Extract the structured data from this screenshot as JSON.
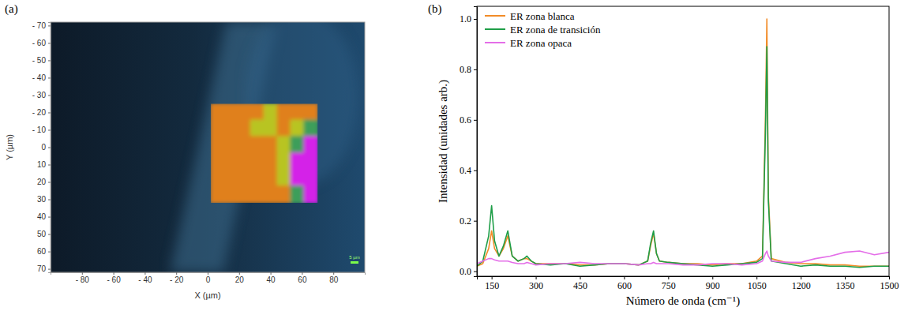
{
  "chart_data": [
    {
      "type": "image_map",
      "panel": "(a)",
      "x_label": "X (µm)",
      "y_label": "Y (µm)",
      "xlim": [
        -100,
        100
      ],
      "ylim": [
        72,
        -72
      ],
      "xticks": [
        {
          "value": -80,
          "label": "- 80"
        },
        {
          "value": -60,
          "label": "- 60"
        },
        {
          "value": -40,
          "label": "- 40"
        },
        {
          "value": -20,
          "label": "- 20"
        },
        0,
        20,
        40,
        60,
        80
      ],
      "yticks": [
        {
          "value": -70,
          "label": "- 70"
        },
        {
          "value": -60,
          "label": "- 60"
        },
        {
          "value": -50,
          "label": "- 50"
        },
        {
          "value": -40,
          "label": "- 40"
        },
        {
          "value": -30,
          "label": "- 30"
        },
        {
          "value": -20,
          "label": "- 20"
        },
        {
          "value": -10,
          "label": "- 10"
        },
        0,
        10,
        20,
        30,
        40,
        50,
        60,
        70
      ],
      "map": {
        "x": [
          2,
          70
        ],
        "y": [
          -25,
          32
        ],
        "cells": [
          [
            0,
            0,
            0,
            0,
            1,
            0,
            0,
            0
          ],
          [
            0,
            0,
            0,
            1,
            1,
            0,
            1,
            2
          ],
          [
            0,
            0,
            0,
            0,
            0,
            1,
            2,
            3
          ],
          [
            0,
            0,
            0,
            0,
            0,
            1,
            3,
            3
          ],
          [
            0,
            0,
            0,
            0,
            0,
            1,
            3,
            3
          ],
          [
            0,
            0,
            0,
            0,
            0,
            0,
            2,
            3
          ]
        ],
        "colors": [
          "#e0801a",
          "#b8c424",
          "#3c9e5a",
          "#d424e8"
        ]
      },
      "annotations": [
        "5 µm"
      ]
    },
    {
      "type": "line",
      "panel": "(b)",
      "x_label": "Número de onda (cm⁻¹)",
      "y_label": "Intensidad (unidades arb.)",
      "legend": "upper left",
      "xlim": [
        100,
        1500
      ],
      "ylim": [
        -0.02,
        1.05
      ],
      "xticks": [
        150,
        300,
        450,
        600,
        750,
        900,
        1050,
        1200,
        1350,
        1500
      ],
      "yticks": [
        {
          "value": 0,
          "label": "0.0"
        },
        {
          "value": 0.2,
          "label": "0.2"
        },
        {
          "value": 0.4,
          "label": "0.4"
        },
        {
          "value": 0.6,
          "label": "0.6"
        },
        {
          "value": 0.8,
          "label": "0.8"
        },
        {
          "value": 1.0,
          "label": "1.0"
        }
      ],
      "x": [
        100,
        120,
        140,
        150,
        160,
        175,
        190,
        205,
        220,
        240,
        260,
        270,
        285,
        300,
        350,
        400,
        450,
        500,
        550,
        600,
        650,
        680,
        690,
        700,
        710,
        720,
        750,
        800,
        850,
        900,
        950,
        1000,
        1050,
        1070,
        1080,
        1085,
        1090,
        1100,
        1150,
        1200,
        1250,
        1300,
        1350,
        1400,
        1450,
        1500
      ],
      "series": [
        {
          "name": "ER zona blanca",
          "color": "#f28c28",
          "values": [
            0.02,
            0.03,
            0.09,
            0.16,
            0.09,
            0.06,
            0.09,
            0.14,
            0.06,
            0.04,
            0.05,
            0.05,
            0.04,
            0.03,
            0.03,
            0.03,
            0.025,
            0.025,
            0.03,
            0.03,
            0.025,
            0.04,
            0.1,
            0.15,
            0.07,
            0.04,
            0.035,
            0.03,
            0.03,
            0.025,
            0.03,
            0.03,
            0.04,
            0.06,
            0.6,
            1.0,
            0.3,
            0.05,
            0.035,
            0.03,
            0.03,
            0.025,
            0.025,
            0.02,
            0.02,
            0.02
          ]
        },
        {
          "name": "ER zona de transición",
          "color": "#1f9e48",
          "values": [
            0.02,
            0.04,
            0.14,
            0.26,
            0.12,
            0.06,
            0.1,
            0.16,
            0.06,
            0.04,
            0.05,
            0.06,
            0.04,
            0.03,
            0.025,
            0.03,
            0.02,
            0.025,
            0.03,
            0.03,
            0.025,
            0.04,
            0.11,
            0.16,
            0.07,
            0.04,
            0.035,
            0.03,
            0.025,
            0.02,
            0.025,
            0.03,
            0.035,
            0.05,
            0.55,
            0.89,
            0.28,
            0.04,
            0.03,
            0.02,
            0.025,
            0.02,
            0.02,
            0.015,
            0.02,
            0.02
          ]
        },
        {
          "name": "ER zona opaca",
          "color": "#e46ee8",
          "values": [
            0.03,
            0.04,
            0.05,
            0.05,
            0.045,
            0.04,
            0.04,
            0.04,
            0.035,
            0.03,
            0.03,
            0.035,
            0.03,
            0.025,
            0.03,
            0.03,
            0.035,
            0.03,
            0.03,
            0.03,
            0.025,
            0.03,
            0.03,
            0.035,
            0.03,
            0.03,
            0.03,
            0.025,
            0.025,
            0.03,
            0.03,
            0.025,
            0.03,
            0.04,
            0.07,
            0.08,
            0.06,
            0.04,
            0.035,
            0.035,
            0.05,
            0.06,
            0.075,
            0.08,
            0.065,
            0.075
          ]
        }
      ]
    }
  ]
}
